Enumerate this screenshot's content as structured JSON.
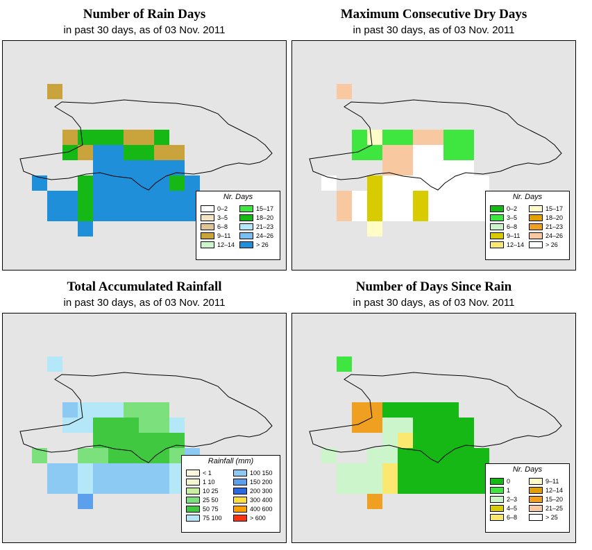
{
  "panels": [
    {
      "id": "rain_days",
      "title": "Number of Rain Days",
      "subtitle": "in past 30 days, as of  03 Nov. 2011",
      "legend": {
        "title": "Nr. Days",
        "items": [
          {
            "label": "0–2",
            "color": "#ffffff"
          },
          {
            "label": "3–5",
            "color": "#f3e3c5"
          },
          {
            "label": "6–8",
            "color": "#dfc494"
          },
          {
            "label": "9–11",
            "color": "#c9a43c"
          },
          {
            "label": "12–14",
            "color": "#ccf5cc"
          },
          {
            "label": "15–17",
            "color": "#3fe63f"
          },
          {
            "label": "18–20",
            "color": "#15b815"
          },
          {
            "label": "21–23",
            "color": "#b4e8f8"
          },
          {
            "label": "24–26",
            "color": "#7abff0"
          },
          {
            "label": "> 26",
            "color": "#1e8fd8"
          }
        ]
      },
      "grid": [
        "..............",
        "..3...........",
        "..............",
        "..............",
        "...3666336....",
        "...63996633...",
        ".....999999...",
        ".9..69999969..",
        "..996999999966",
        "..996999999966",
        "....9.........",
        "..............",
        ".............."
      ]
    },
    {
      "id": "dry_days",
      "title": "Maximum Consecutive Dry Days",
      "subtitle": "in past 30 days, as of  03 Nov. 2011",
      "legend": {
        "title": "Nr. Days",
        "items": [
          {
            "label": "0–2",
            "color": "#15b815"
          },
          {
            "label": "3–5",
            "color": "#3fe63f"
          },
          {
            "label": "6–8",
            "color": "#ccf5cc"
          },
          {
            "label": "9–11",
            "color": "#d8cc00"
          },
          {
            "label": "12–14",
            "color": "#fae870"
          },
          {
            "label": "15–17",
            "color": "#fffcc8"
          },
          {
            "label": "18–20",
            "color": "#e0a000"
          },
          {
            "label": "21–23",
            "color": "#f0a020"
          },
          {
            "label": "24–26",
            "color": "#f8c8a0"
          },
          {
            "label": "> 26",
            "color": "#ffffff"
          }
        ]
      },
      "grid": [
        "..............",
        "..8...........",
        "..............",
        "..............",
        "...15118811...",
        "...11889911...",
        ".....889999...",
        ".9..39999999..",
        "..893993999966",
        "..893993999966",
        "....5.........",
        "..............",
        ".............."
      ]
    },
    {
      "id": "rainfall",
      "title": "Total Accumulated Rainfall",
      "subtitle": "in past 30 days, as of  03 Nov. 2011",
      "legend": {
        "title": "Rainfall (mm)",
        "items": [
          {
            "label": "< 1",
            "color": "#fff6e0"
          },
          {
            "label": "1    10",
            "color": "#f5f5d0"
          },
          {
            "label": "10    25",
            "color": "#c8f0a0"
          },
          {
            "label": "25    50",
            "color": "#7ce07c"
          },
          {
            "label": "50    75",
            "color": "#40c840"
          },
          {
            "label": "75    100",
            "color": "#b4e8f8"
          },
          {
            "label": "100    150",
            "color": "#8ccaf4"
          },
          {
            "label": "150    200",
            "color": "#5aa0ec"
          },
          {
            "label": "200    300",
            "color": "#2a6ae0"
          },
          {
            "label": "300    400",
            "color": "#ffe040"
          },
          {
            "label": "400    600",
            "color": "#ffa000"
          },
          {
            "label": "> 600",
            "color": "#ff3010"
          }
        ]
      },
      "grid": [
        "..............",
        "..5...........",
        "..............",
        "..............",
        "...6555333....",
        "...55444335...",
        ".....444444...",
        ".3..33444436..",
        "..665666665555",
        "..665666665555",
        "....7.........",
        "..............",
        ".............."
      ]
    },
    {
      "id": "since_rain",
      "title": "Number of Days Since Rain",
      "subtitle": "in past 30 days, as of  03 Nov. 2011",
      "legend": {
        "title": "Nr. Days",
        "items": [
          {
            "label": "0",
            "color": "#15b815"
          },
          {
            "label": "1",
            "color": "#3fe63f"
          },
          {
            "label": "2–3",
            "color": "#ccf5cc"
          },
          {
            "label": "4–5",
            "color": "#d8cc00"
          },
          {
            "label": "6–8",
            "color": "#fae870"
          },
          {
            "label": "9–11",
            "color": "#fffcc8"
          },
          {
            "label": "12–14",
            "color": "#e0a000"
          },
          {
            "label": "15–20",
            "color": "#f0a020"
          },
          {
            "label": "21–25",
            "color": "#f8c8a0"
          },
          {
            "label": "> 25",
            "color": "#ffffff"
          }
        ]
      },
      "grid": [
        "..............",
        "..1...........",
        "..............",
        "..............",
        "...7700000....",
        "...77220000...",
        ".....240000...",
        ".2..22000000..",
        "..222400000000",
        "..222400000000",
        "....7.........",
        "..............",
        ".............."
      ]
    }
  ]
}
